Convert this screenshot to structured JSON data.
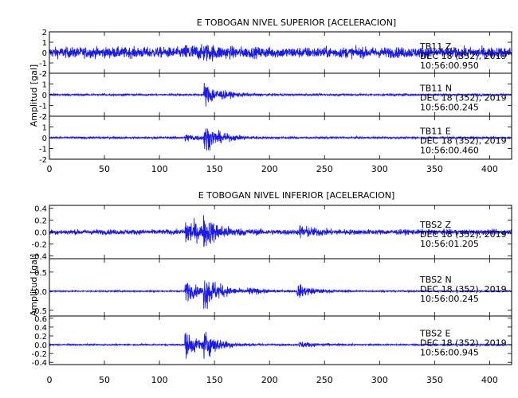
{
  "chart_data": [
    {
      "type": "line",
      "title": "E TOBOGAN NIVEL SUPERIOR [ACELERACION]",
      "ylabel": "Amplitud [gal]",
      "xlabel": "",
      "xlim": [
        0,
        420
      ],
      "xticks": [
        "0",
        "50",
        "100",
        "150",
        "200",
        "250",
        "300",
        "350",
        "400"
      ],
      "xtick_values": [
        0,
        50,
        100,
        150,
        200,
        250,
        300,
        350,
        400
      ],
      "grid": false,
      "color": "#1a1aee",
      "traces": [
        {
          "station": "TB11",
          "component": "Z",
          "date": "DEC 18 (352), 2019",
          "time": "10:56:00.950",
          "ylim": [
            -2,
            2
          ],
          "yticks": [
            "2",
            "1",
            "0",
            "-1",
            "-2"
          ],
          "ytick_values": [
            2,
            1,
            0,
            -1,
            -2
          ],
          "noise": 0.85,
          "events": [
            [
              123,
              0.8
            ],
            [
              140,
              0.55
            ]
          ]
        },
        {
          "station": "TB11",
          "component": "N",
          "date": "DEC 18 (352), 2019",
          "time": "10:56:00.245",
          "ylim": [
            -2,
            2
          ],
          "yticks": [
            "2",
            "1",
            "0",
            "-1",
            "-2"
          ],
          "ytick_values": [
            2,
            1,
            0,
            -1,
            -2
          ],
          "noise": 0.15,
          "events": [
            [
              140,
              1.9
            ]
          ]
        },
        {
          "station": "TB11",
          "component": "E",
          "date": "DEC 18 (352), 2019",
          "time": "10:56:00.460",
          "ylim": [
            -2,
            2
          ],
          "yticks": [
            "2",
            "1",
            "0",
            "-1",
            "-2"
          ],
          "ytick_values": [
            2,
            1,
            0,
            -1,
            -2
          ],
          "noise": 0.15,
          "events": [
            [
              140,
              1.9
            ],
            [
              123,
              0.6
            ]
          ]
        }
      ]
    },
    {
      "type": "line",
      "title": "E TOBOGAN NIVEL INFERIOR [ACELERACION]",
      "ylabel": "Amplitud [gal]",
      "xlabel": "",
      "xlim": [
        0,
        420
      ],
      "xticks": [
        "0",
        "50",
        "100",
        "150",
        "200",
        "250",
        "300",
        "350",
        "400"
      ],
      "xtick_values": [
        0,
        50,
        100,
        150,
        200,
        250,
        300,
        350,
        400
      ],
      "grid": false,
      "color": "#1a1aee",
      "traces": [
        {
          "station": "TBS2",
          "component": "Z",
          "date": "DEC 18 (352), 2019",
          "time": "10:56:01.205",
          "ylim": [
            -0.45,
            0.45
          ],
          "yticks": [
            "0.4",
            "0.2",
            "0.0",
            "-0.2",
            "-0.4"
          ],
          "ytick_values": [
            0.4,
            0.2,
            0.0,
            -0.2,
            -0.4
          ],
          "noise": 0.07,
          "events": [
            [
              123,
              0.4
            ],
            [
              140,
              0.3
            ],
            [
              227,
              0.15
            ]
          ]
        },
        {
          "station": "TBS2",
          "component": "N",
          "date": "DEC 18 (352), 2019",
          "time": "10:56:00.245",
          "ylim": [
            -0.65,
            0.85
          ],
          "yticks": [
            "0.5",
            "0.0",
            "-0.5"
          ],
          "ytick_values": [
            0.5,
            0.0,
            -0.5
          ],
          "noise": 0.03,
          "events": [
            [
              123,
              0.45
            ],
            [
              140,
              0.7
            ],
            [
              180,
              0.12
            ],
            [
              225,
              0.3
            ]
          ]
        },
        {
          "station": "TBS2",
          "component": "E",
          "date": "DEC 18 (352), 2019",
          "time": "10:56:00.945",
          "ylim": [
            -0.45,
            0.65
          ],
          "yticks": [
            "0.6",
            "0.4",
            "0.2",
            "0.0",
            "-0.2",
            "-0.4"
          ],
          "ytick_values": [
            0.6,
            0.4,
            0.2,
            0.0,
            -0.2,
            -0.4
          ],
          "noise": 0.025,
          "events": [
            [
              123,
              0.5
            ],
            [
              140,
              0.4
            ],
            [
              227,
              0.12
            ]
          ]
        }
      ]
    }
  ]
}
